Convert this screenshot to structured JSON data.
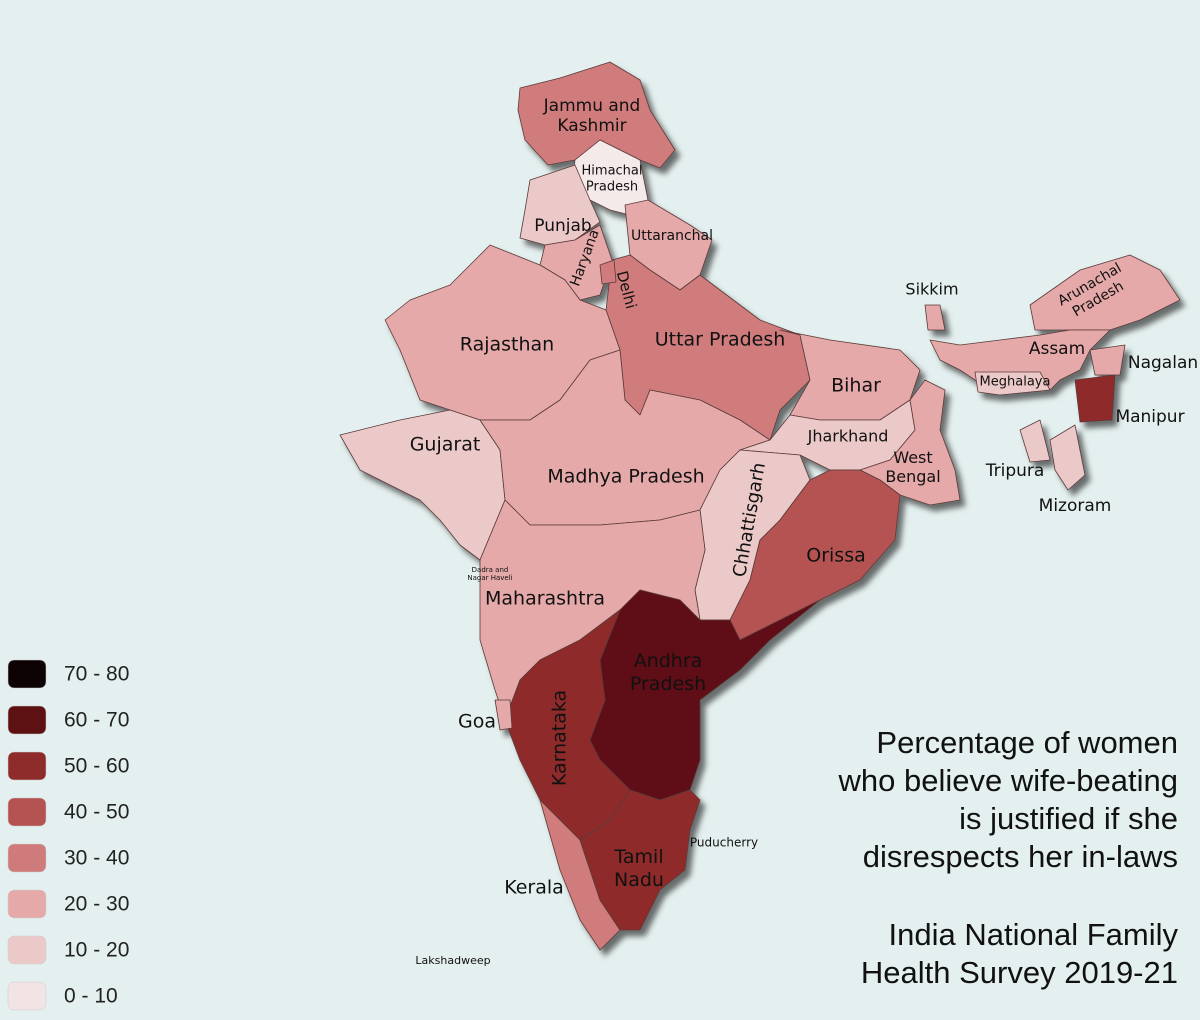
{
  "title": [
    "Percentage of women",
    "who believe wife-beating",
    "is justified if she",
    "disrespects her in-laws"
  ],
  "source": [
    "India National Family",
    "Health Survey 2019-21"
  ],
  "legend": {
    "items": [
      {
        "label": "70 - 80",
        "color": "#0d0304"
      },
      {
        "label": "60 - 70",
        "color": "#5e1112"
      },
      {
        "label": "50 - 60",
        "color": "#8e2c2c"
      },
      {
        "label": "40 - 50",
        "color": "#b55252"
      },
      {
        "label": "30 - 40",
        "color": "#d07b7b"
      },
      {
        "label": "20 - 30",
        "color": "#e6a9a9"
      },
      {
        "label": "10 - 20",
        "color": "#ecc9c9"
      },
      {
        "label": "0 - 10",
        "color": "#f2e4e4"
      }
    ]
  },
  "regions": [
    {
      "label": [
        "Jammu and",
        "Kashmir"
      ],
      "color": "#d07b7b"
    },
    {
      "label": [
        "Himachal",
        "Pradesh"
      ],
      "color": "#f5eaea"
    },
    {
      "label": [
        "Punjab"
      ],
      "color": "#ecc9c9"
    },
    {
      "label": [
        "Haryana"
      ],
      "color": "#e6a9a9"
    },
    {
      "label": [
        "Uttaranchal"
      ],
      "color": "#e6a9a9"
    },
    {
      "label": [
        "Uttar Pradesh"
      ],
      "color": "#d07b7b"
    },
    {
      "label": [
        "Delhi"
      ],
      "color": "#d07b7b"
    },
    {
      "label": [
        "Rajasthan"
      ],
      "color": "#e6a9a9"
    },
    {
      "label": [
        "Gujarat"
      ],
      "color": "#ecc9c9"
    },
    {
      "label": [
        "Madhya Pradesh"
      ],
      "color": "#e6a9a9"
    },
    {
      "label": [
        "Bihar"
      ],
      "color": "#e6a9a9"
    },
    {
      "label": [
        "Jharkhand"
      ],
      "color": "#ecc9c9"
    },
    {
      "label": [
        "West",
        "Bengal"
      ],
      "color": "#e6a9a9"
    },
    {
      "label": [
        "Chhattisgarh"
      ],
      "color": "#ecc9c9"
    },
    {
      "label": [
        "Orissa"
      ],
      "color": "#b55252"
    },
    {
      "label": [
        "Maharashtra"
      ],
      "color": "#e6a9a9"
    },
    {
      "label": [
        "Andhra",
        "Pradesh"
      ],
      "color": "#5e1112"
    },
    {
      "label": [
        "Karnataka"
      ],
      "color": "#8e2c2c"
    },
    {
      "label": [
        "Goa"
      ],
      "color": "#e6a9a9"
    },
    {
      "label": [
        "Kerala"
      ],
      "color": "#d07b7b"
    },
    {
      "label": [
        "Tamil",
        "Nadu"
      ],
      "color": "#8e2c2c"
    },
    {
      "label": [
        "Sikkim"
      ],
      "color": "#e6a9a9"
    },
    {
      "label": [
        "Arunachal",
        "Pradesh"
      ],
      "color": "#e6a9a9"
    },
    {
      "label": [
        "Assam"
      ],
      "color": "#e6a9a9"
    },
    {
      "label": [
        "Meghalaya"
      ],
      "color": "#ecc9c9"
    },
    {
      "label": [
        "Nagalan"
      ],
      "color": "#e6a9a9"
    },
    {
      "label": [
        "Manipur"
      ],
      "color": "#8e2c2c"
    },
    {
      "label": [
        "Tripura"
      ],
      "color": "#ecc9c9"
    },
    {
      "label": [
        "Mizoram"
      ],
      "color": "#ecc9c9"
    },
    {
      "label": [
        "Dadra and",
        "Nagar Haveli"
      ],
      "color": "#e6a9a9"
    },
    {
      "label": [
        "Puducherry"
      ],
      "color": "#8e2c2c"
    },
    {
      "label": [
        "Lakshadweep"
      ],
      "color": "#e6a9a9"
    }
  ]
}
